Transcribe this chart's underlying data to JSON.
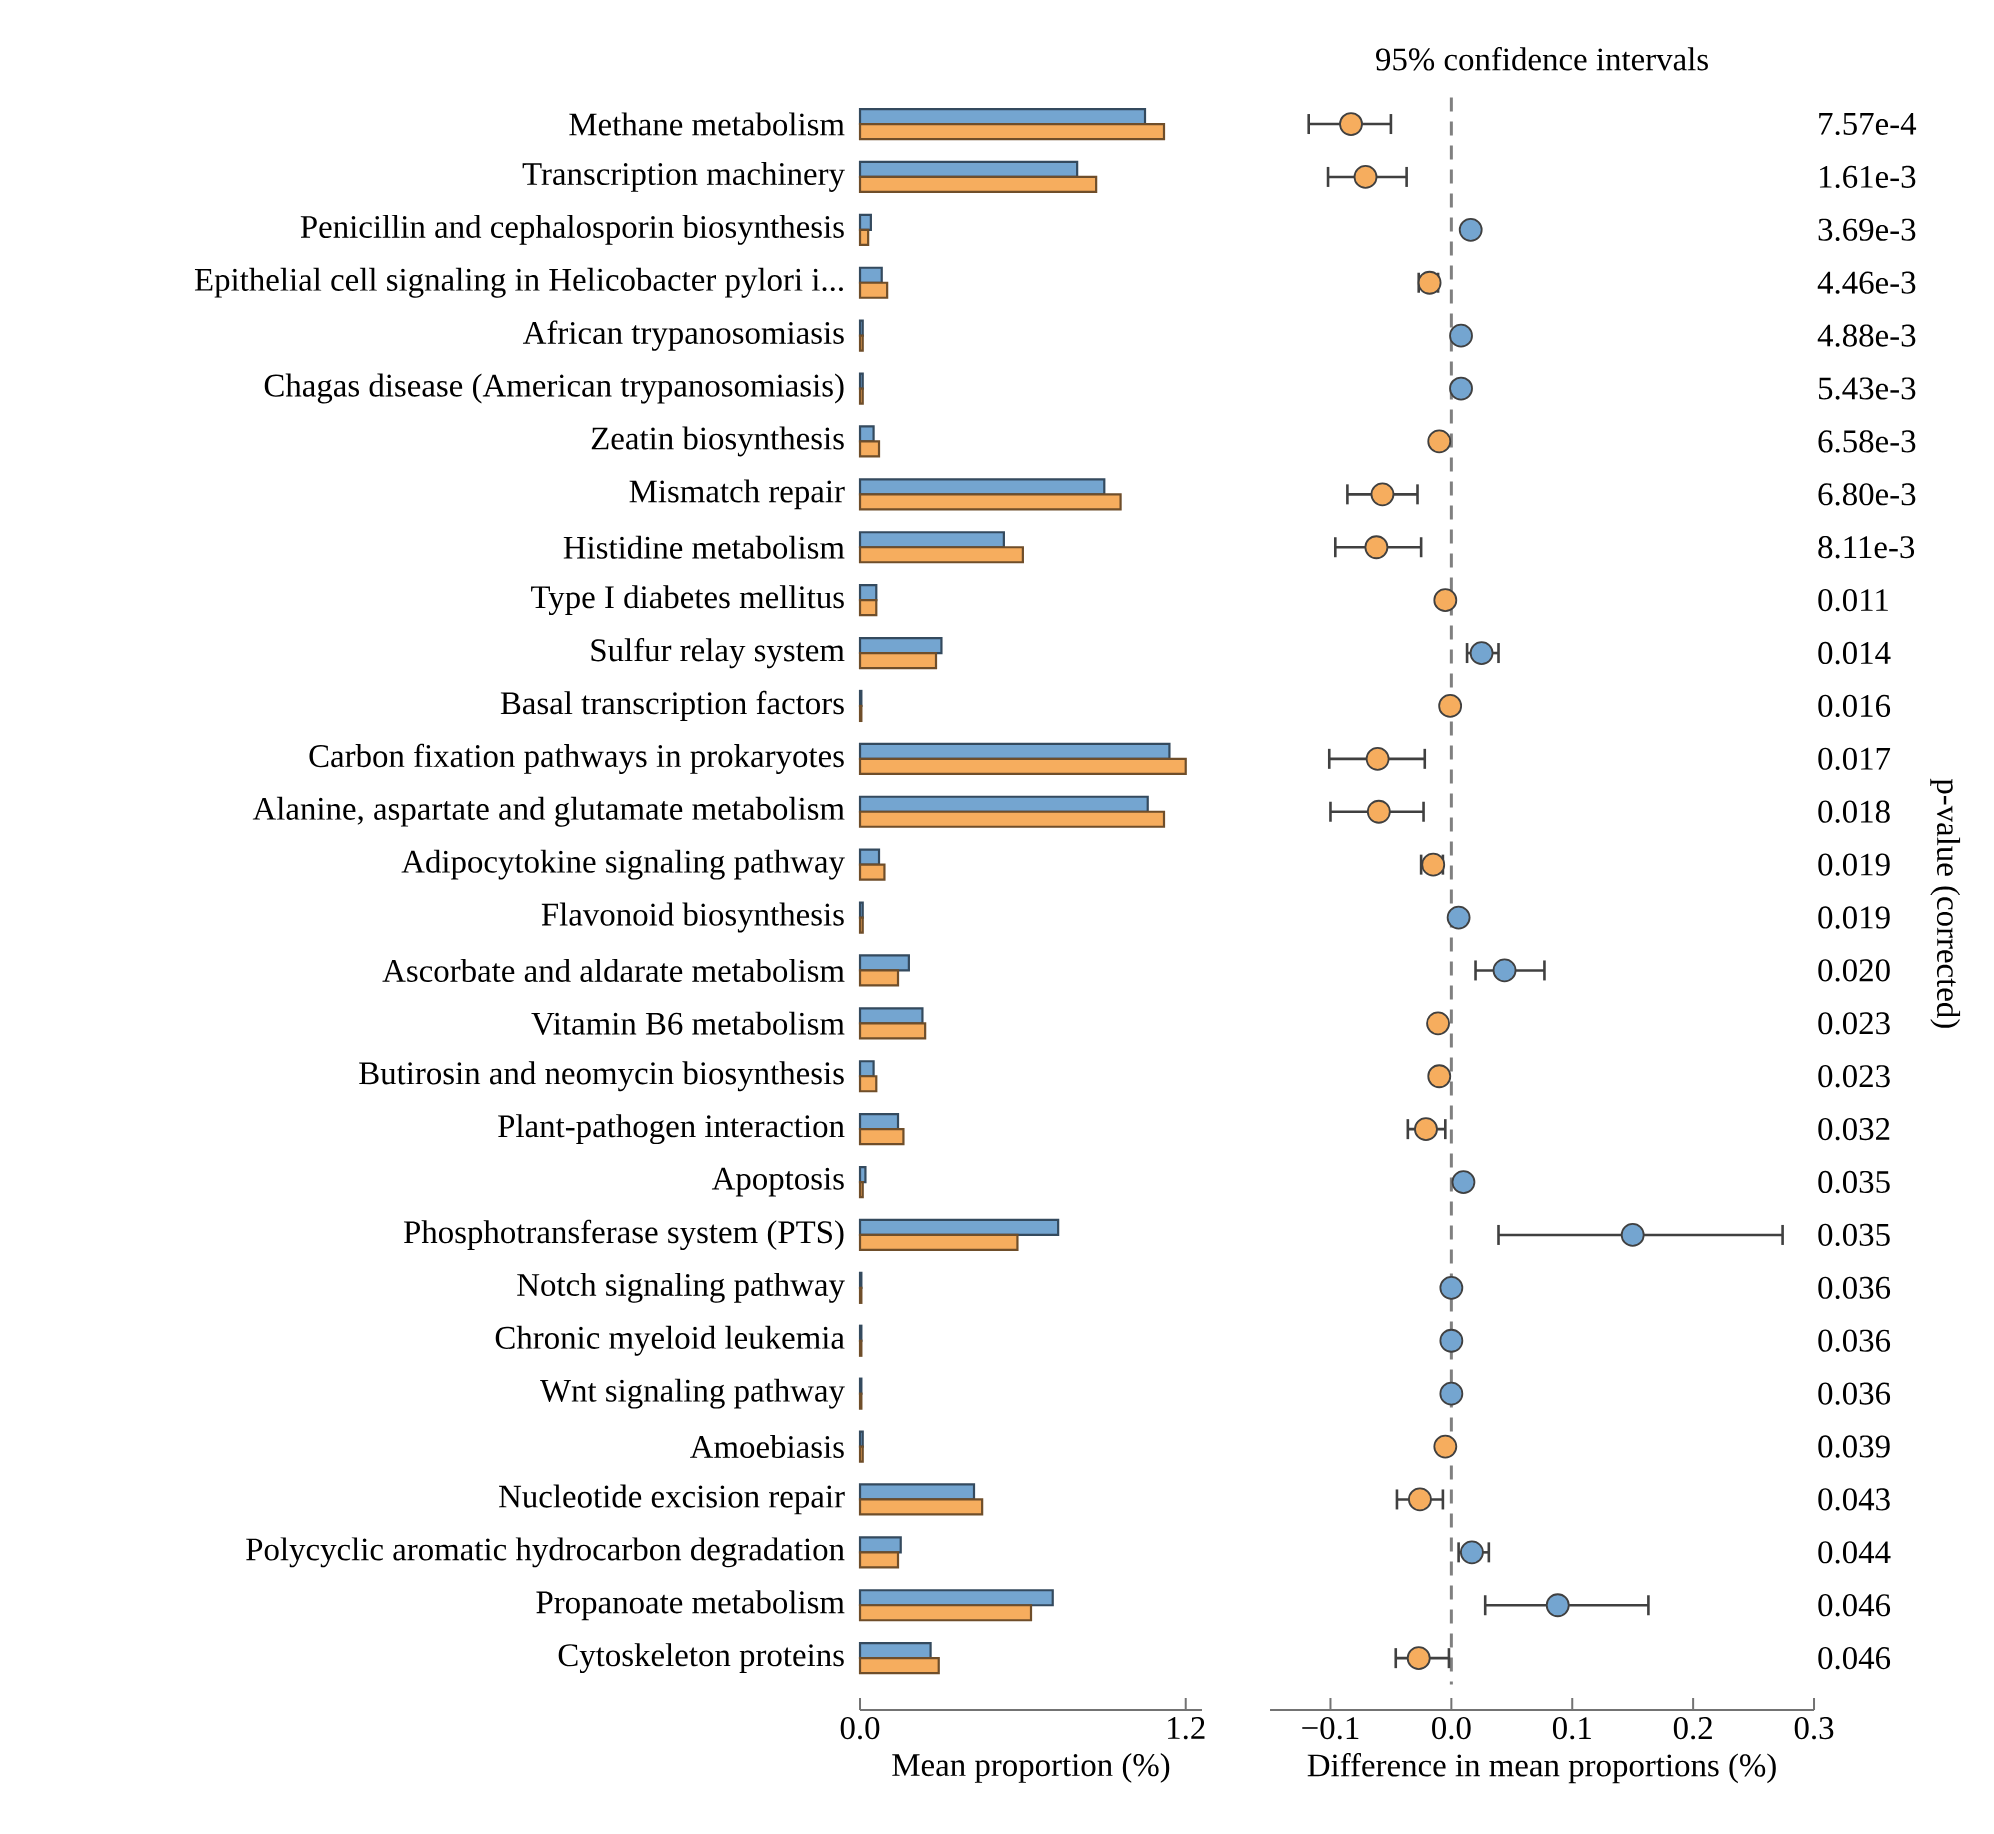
{
  "chart_data": [
    {
      "type": "bar",
      "orientation": "horizontal",
      "xlabel": "Mean proportion (%)",
      "categories": [
        "Methane metabolism",
        "Transcription machinery",
        "Penicillin and cephalosporin biosynthesis",
        "Epithelial cell signaling in Helicobacter pylori i...",
        "African trypanosomiasis",
        "Chagas disease (American trypanosomiasis)",
        "Zeatin biosynthesis",
        "Mismatch repair",
        "Histidine metabolism",
        "Type I diabetes mellitus",
        "Sulfur relay system",
        "Basal transcription factors",
        "Carbon fixation pathways in prokaryotes",
        "Alanine, aspartate and glutamate metabolism",
        "Adipocytokine signaling pathway",
        "Flavonoid biosynthesis",
        "Ascorbate and aldarate metabolism",
        "Vitamin B6 metabolism",
        "Butirosin and neomycin biosynthesis",
        "Plant-pathogen interaction",
        "Apoptosis",
        "Phosphotransferase system (PTS)",
        "Notch signaling pathway",
        "Chronic myeloid leukemia",
        "Wnt signaling pathway",
        "Amoebiasis",
        "Nucleotide excision repair",
        "Polycyclic aromatic hydrocarbon degradation",
        "Propanoate metabolism",
        "Cytoskeleton proteins"
      ],
      "series": [
        {
          "color": "#74a5d0",
          "values": [
            1.05,
            0.8,
            0.04,
            0.08,
            0.01,
            0.01,
            0.05,
            0.9,
            0.53,
            0.06,
            0.3,
            0.005,
            1.14,
            1.06,
            0.07,
            0.01,
            0.18,
            0.23,
            0.05,
            0.14,
            0.02,
            0.73,
            0.005,
            0.005,
            0.005,
            0.01,
            0.42,
            0.15,
            0.71,
            0.26
          ]
        },
        {
          "color": "#f6ad5e",
          "values": [
            1.12,
            0.87,
            0.03,
            0.1,
            0.01,
            0.01,
            0.07,
            0.96,
            0.6,
            0.06,
            0.28,
            0.005,
            1.2,
            1.12,
            0.09,
            0.01,
            0.14,
            0.24,
            0.06,
            0.16,
            0.01,
            0.58,
            0.005,
            0.005,
            0.005,
            0.01,
            0.45,
            0.14,
            0.63,
            0.29
          ]
        }
      ],
      "xlim": [
        0,
        1.26
      ],
      "xticks": [
        {
          "value": 0,
          "label": "0.0"
        },
        {
          "value": 1.2,
          "label": "1.2"
        }
      ]
    },
    {
      "type": "scatter",
      "orientation": "horizontal",
      "title": "95% confidence intervals",
      "xlabel": "Difference in mean proportions (%)",
      "y2label": "p-value (corrected)",
      "tick_labels": "x",
      "categories": [
        null,
        null,
        null,
        null,
        null,
        null,
        null,
        null,
        null,
        null,
        null,
        null,
        null,
        null,
        null,
        null,
        null,
        null,
        null,
        null,
        null,
        null,
        null,
        null,
        null,
        null,
        null,
        null,
        null,
        null
      ],
      "y2_categories": [
        "7.57e-4",
        "1.61e-3",
        "3.69e-3",
        "4.46e-3",
        "4.88e-3",
        "5.43e-3",
        "6.58e-3",
        "6.80e-3",
        "8.11e-3",
        "0.011",
        "0.014",
        "0.016",
        "0.017",
        "0.018",
        "0.019",
        "0.019",
        "0.020",
        "0.023",
        "0.023",
        "0.032",
        "0.035",
        "0.035",
        "0.036",
        "0.036",
        "0.036",
        "0.039",
        "0.043",
        "0.044",
        "0.046",
        "0.046"
      ],
      "values": [
        -0.083,
        -0.071,
        0.016,
        -0.018,
        0.008,
        0.008,
        -0.01,
        -0.057,
        -0.062,
        -0.005,
        0.025,
        -0.001,
        -0.061,
        -0.06,
        -0.015,
        0.006,
        0.044,
        -0.011,
        -0.01,
        -0.021,
        0.01,
        0.15,
        0.0,
        0.0,
        0.0,
        -0.005,
        -0.026,
        0.017,
        0.088,
        -0.027
      ],
      "errors": [
        [
          -0.118,
          -0.05
        ],
        [
          -0.102,
          -0.037
        ],
        null,
        [
          -0.027,
          -0.011
        ],
        null,
        null,
        null,
        [
          -0.086,
          -0.028
        ],
        [
          -0.096,
          -0.025
        ],
        null,
        [
          0.013,
          0.039
        ],
        null,
        [
          -0.101,
          -0.022
        ],
        [
          -0.1,
          -0.023
        ],
        [
          -0.025,
          -0.007
        ],
        null,
        [
          0.02,
          0.077
        ],
        null,
        null,
        [
          -0.036,
          -0.005
        ],
        null,
        [
          0.039,
          0.274
        ],
        null,
        null,
        null,
        null,
        [
          -0.045,
          -0.007
        ],
        [
          0.006,
          0.031
        ],
        [
          0.028,
          0.163
        ],
        [
          -0.046,
          -0.002
        ]
      ],
      "colors": [
        "#f6ad5e",
        "#f6ad5e",
        "#74a5d0",
        "#f6ad5e",
        "#74a5d0",
        "#74a5d0",
        "#f6ad5e",
        "#f6ad5e",
        "#f6ad5e",
        "#f6ad5e",
        "#74a5d0",
        "#f6ad5e",
        "#f6ad5e",
        "#f6ad5e",
        "#f6ad5e",
        "#74a5d0",
        "#74a5d0",
        "#f6ad5e",
        "#f6ad5e",
        "#f6ad5e",
        "#74a5d0",
        "#74a5d0",
        "#74a5d0",
        "#74a5d0",
        "#74a5d0",
        "#f6ad5e",
        "#f6ad5e",
        "#74a5d0",
        "#74a5d0",
        "#f6ad5e"
      ],
      "ref_lines": [
        {
          "axis": "x",
          "value": 0,
          "color": "#808080",
          "line_style": "dashed"
        }
      ],
      "xlim": [
        -0.15,
        0.3
      ],
      "xticks": [
        {
          "value": -0.1,
          "label": "−0.1"
        },
        {
          "value": 0,
          "label": "0.0"
        },
        0.1,
        0.2,
        0.3
      ]
    }
  ]
}
